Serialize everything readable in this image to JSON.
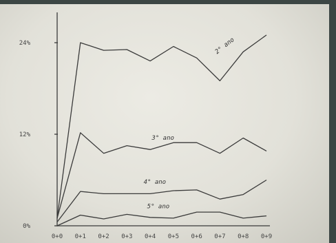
{
  "chart_data": {
    "type": "line",
    "title": "",
    "xlabel": "",
    "ylabel": "",
    "categories": [
      "0+0",
      "0+1",
      "0+2",
      "0+3",
      "0+4",
      "0+5",
      "0+6",
      "0+7",
      "0+8",
      "0+9"
    ],
    "y_ticks": [
      {
        "value": 0,
        "label": "0%"
      },
      {
        "value": 12,
        "label": "12%"
      },
      {
        "value": 24,
        "label": "24%"
      }
    ],
    "ylim": [
      0,
      26
    ],
    "grid": false,
    "legend": "inline labels",
    "series": [
      {
        "name": "2° ano",
        "values": [
          1.0,
          24.0,
          23.0,
          23.1,
          21.6,
          23.5,
          22.0,
          19.0,
          22.8,
          25.0
        ]
      },
      {
        "name": "3° ano",
        "values": [
          1.0,
          12.2,
          9.5,
          10.5,
          10.0,
          10.9,
          10.9,
          9.5,
          11.5,
          9.8
        ]
      },
      {
        "name": "4° ano",
        "values": [
          0.5,
          4.5,
          4.2,
          4.2,
          4.2,
          4.6,
          4.7,
          3.5,
          4.1,
          6.0
        ]
      },
      {
        "name": "5° ano",
        "values": [
          0.0,
          1.4,
          0.9,
          1.5,
          1.1,
          1.0,
          1.8,
          1.8,
          1.0,
          1.3
        ]
      }
    ]
  }
}
